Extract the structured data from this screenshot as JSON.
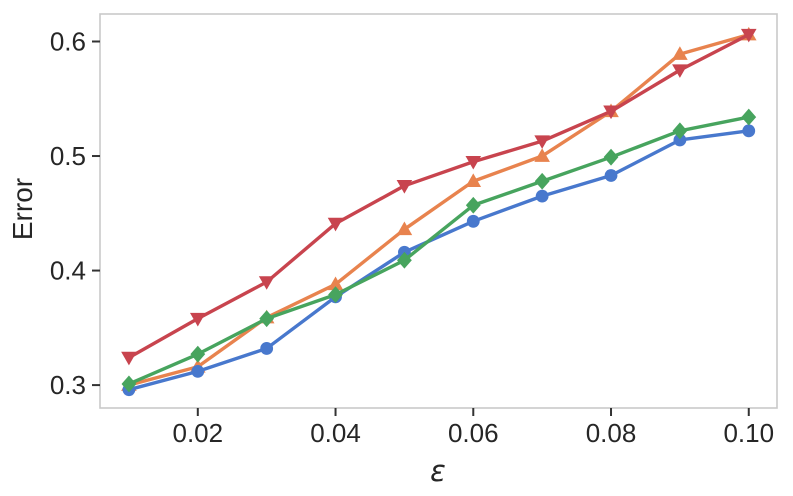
{
  "figure": {
    "background": "#ffffff"
  },
  "chart_data": {
    "type": "line",
    "title": "",
    "xlabel": "ε",
    "ylabel": "Error",
    "grid": false,
    "legend": null,
    "x": [
      0.01,
      0.02,
      0.03,
      0.04,
      0.05,
      0.06,
      0.07,
      0.08,
      0.09,
      0.1
    ],
    "series": [
      {
        "name": "orange-triangle-up-series",
        "marker": "triangle-up",
        "color": "#E8834E",
        "values": [
          0.3,
          0.316,
          0.359,
          0.388,
          0.436,
          0.478,
          0.5,
          0.539,
          0.589,
          0.606
        ]
      },
      {
        "name": "blue-circle-series",
        "marker": "circle",
        "color": "#4878CD",
        "values": [
          0.296,
          0.312,
          0.332,
          0.377,
          0.416,
          0.443,
          0.465,
          0.483,
          0.514,
          0.522
        ]
      },
      {
        "name": "green-diamond-series",
        "marker": "diamond",
        "color": "#47A45E",
        "values": [
          0.301,
          0.327,
          0.358,
          0.379,
          0.409,
          0.457,
          0.478,
          0.499,
          0.522,
          0.534
        ]
      },
      {
        "name": "red-triangle-down-series",
        "marker": "triangle-down",
        "color": "#C8444E",
        "values": [
          0.324,
          0.358,
          0.39,
          0.441,
          0.474,
          0.495,
          0.513,
          0.539,
          0.575,
          0.606
        ]
      }
    ],
    "xticks": {
      "values": [
        0.02,
        0.04,
        0.06,
        0.08,
        0.1
      ],
      "labels": [
        "0.02",
        "0.04",
        "0.06",
        "0.08",
        "0.10"
      ]
    },
    "yticks": {
      "values": [
        0.3,
        0.4,
        0.5,
        0.6
      ],
      "labels": [
        "0.3",
        "0.4",
        "0.5",
        "0.6"
      ]
    },
    "xlim": [
      0.0058,
      0.1041
    ],
    "ylim": [
      0.28,
      0.624
    ],
    "styles": {
      "spine_color": "#c9c9c9",
      "tick_color": "#333333",
      "text_color": "#262626",
      "line_width": 3.4
    }
  }
}
